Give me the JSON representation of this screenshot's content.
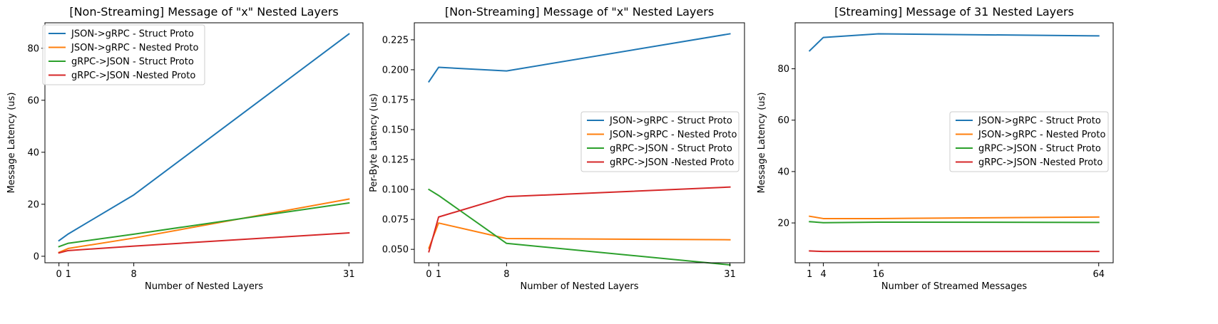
{
  "chart_data": [
    {
      "type": "line",
      "title": "[Non-Streaming] Message of \"x\" Nested Layers",
      "xlabel": "Number of Nested Layers",
      "ylabel": "Message Latency (us)",
      "xlim": [
        -1.5,
        32.5
      ],
      "ylim": [
        -2.5,
        89.8
      ],
      "xticks": [
        0,
        1,
        8,
        31
      ],
      "yticks": [
        0,
        20,
        40,
        60,
        80
      ],
      "ytick_decimals": 0,
      "legend": "upper-left",
      "series": [
        {
          "name": "JSON->gRPC - Struct Proto",
          "color": "#1f77b4",
          "x": [
            0,
            1,
            8,
            31
          ],
          "y": [
            6.0,
            8.6,
            23.6,
            85.5
          ]
        },
        {
          "name": "JSON->gRPC - Nested Proto",
          "color": "#ff7f0e",
          "x": [
            0,
            1,
            8,
            31
          ],
          "y": [
            1.5,
            3.0,
            7.0,
            22.0
          ]
        },
        {
          "name": "gRPC->JSON - Struct Proto",
          "color": "#2ca02c",
          "x": [
            0,
            1,
            8,
            31
          ],
          "y": [
            3.7,
            5.0,
            8.5,
            20.5
          ]
        },
        {
          "name": "gRPC->JSON -Nested Proto",
          "color": "#d62728",
          "x": [
            0,
            1,
            8,
            31
          ],
          "y": [
            1.3,
            2.2,
            3.9,
            9.0
          ]
        }
      ]
    },
    {
      "type": "line",
      "title": "[Non-Streaming] Message of \"x\" Nested Layers",
      "xlabel": "Number of Nested Layers",
      "ylabel": "Per-Byte Latency (us)",
      "xlim": [
        -1.5,
        32.5
      ],
      "ylim": [
        0.0388,
        0.2392
      ],
      "xticks": [
        0,
        1,
        8,
        31
      ],
      "yticks": [
        0.05,
        0.075,
        0.1,
        0.125,
        0.15,
        0.175,
        0.2,
        0.225
      ],
      "ytick_decimals": 3,
      "legend": "center-right",
      "series": [
        {
          "name": "JSON->gRPC - Struct Proto",
          "color": "#1f77b4",
          "x": [
            0,
            1,
            8,
            31
          ],
          "y": [
            0.19,
            0.202,
            0.199,
            0.23
          ]
        },
        {
          "name": "JSON->gRPC - Nested Proto",
          "color": "#ff7f0e",
          "x": [
            0,
            1,
            8,
            31
          ],
          "y": [
            0.051,
            0.072,
            0.059,
            0.058
          ]
        },
        {
          "name": "gRPC->JSON - Struct Proto",
          "color": "#2ca02c",
          "x": [
            0,
            1,
            8,
            31
          ],
          "y": [
            0.1,
            0.095,
            0.055,
            0.037
          ]
        },
        {
          "name": "gRPC->JSON -Nested Proto",
          "color": "#d62728",
          "x": [
            0,
            1,
            8,
            31
          ],
          "y": [
            0.048,
            0.077,
            0.094,
            0.102
          ]
        }
      ]
    },
    {
      "type": "line",
      "title": "[Streaming] Message of 31 Nested Layers",
      "xlabel": "Number of Streamed Messages",
      "ylabel": "Message Latency (us)",
      "xlim": [
        -2.15,
        67.15
      ],
      "ylim": [
        4.5,
        97.9
      ],
      "xticks": [
        1,
        4,
        16,
        64
      ],
      "yticks": [
        20,
        40,
        60,
        80
      ],
      "ytick_decimals": 0,
      "legend": "center-right",
      "series": [
        {
          "name": "JSON->gRPC - Struct Proto",
          "color": "#1f77b4",
          "x": [
            1,
            4,
            16,
            64
          ],
          "y": [
            87.0,
            92.2,
            93.6,
            92.8
          ]
        },
        {
          "name": "JSON->gRPC - Nested Proto",
          "color": "#ff7f0e",
          "x": [
            1,
            4,
            16,
            64
          ],
          "y": [
            22.6,
            21.7,
            21.7,
            22.3
          ]
        },
        {
          "name": "gRPC->JSON - Struct Proto",
          "color": "#2ca02c",
          "x": [
            1,
            4,
            16,
            64
          ],
          "y": [
            20.5,
            20.1,
            20.3,
            20.2
          ]
        },
        {
          "name": "gRPC->JSON -Nested Proto",
          "color": "#d62728",
          "x": [
            1,
            4,
            16,
            64
          ],
          "y": [
            9.1,
            8.9,
            8.9,
            8.9
          ]
        }
      ]
    }
  ]
}
